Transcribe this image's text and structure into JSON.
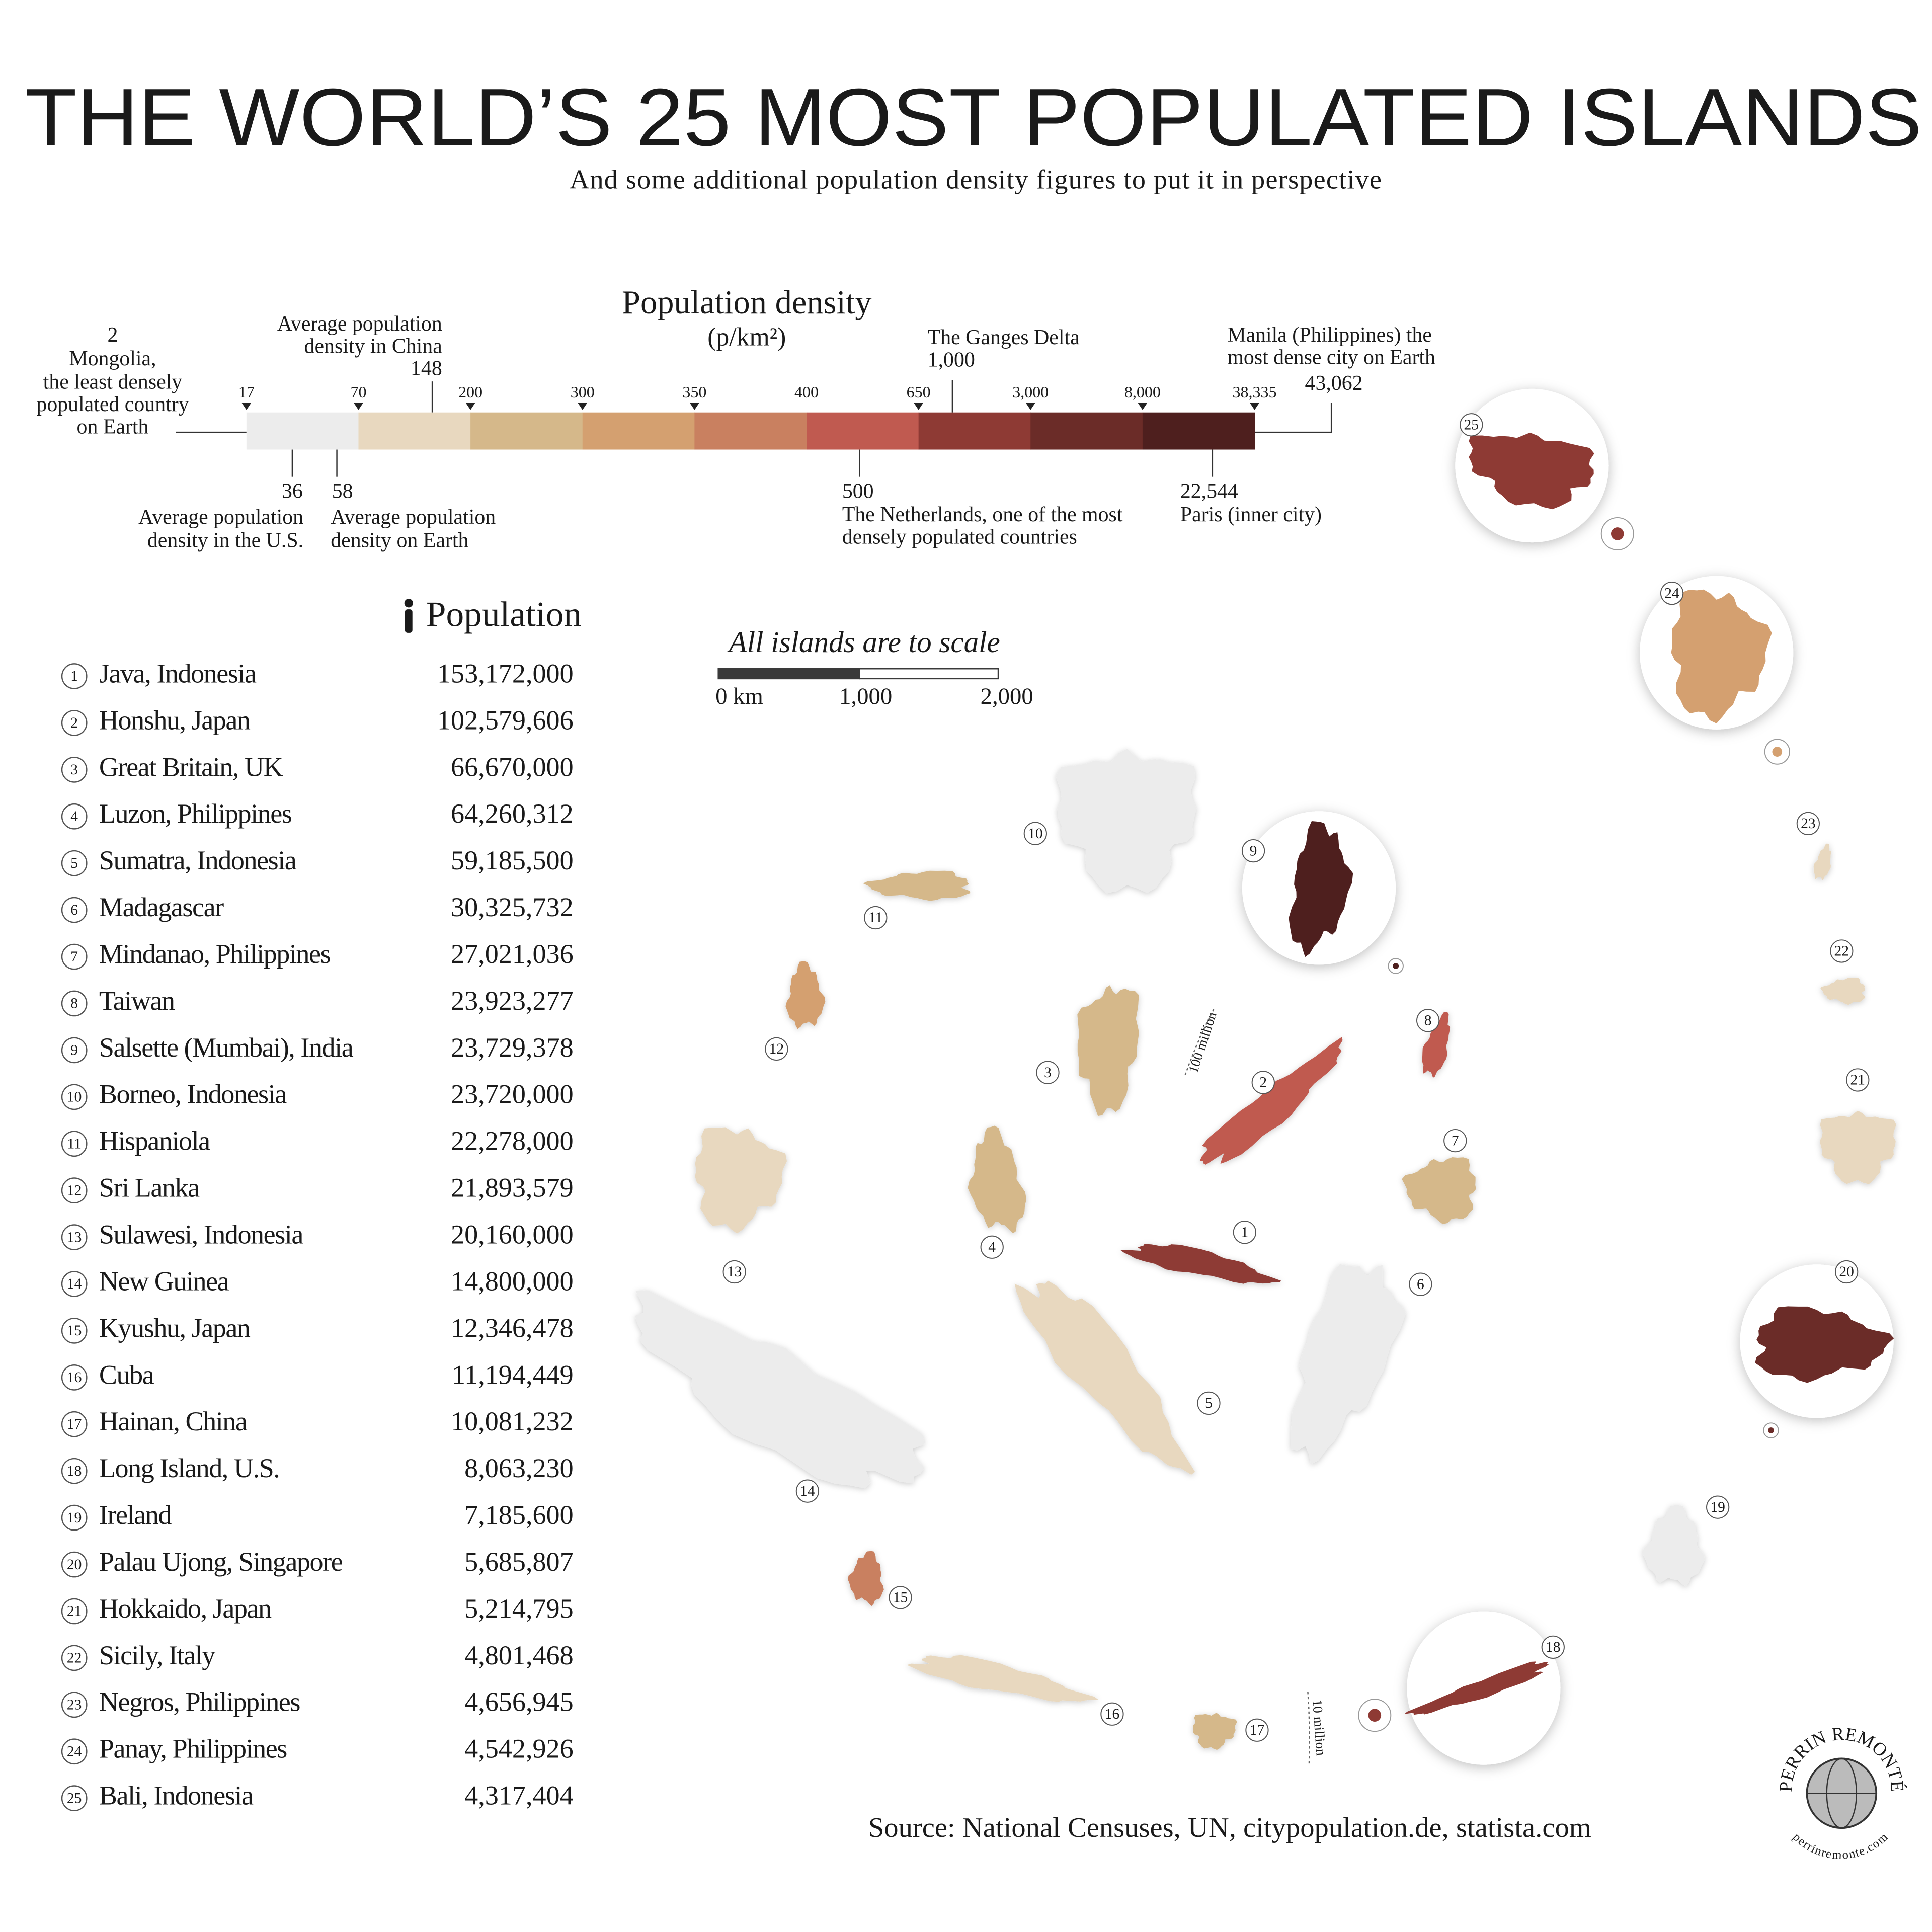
{
  "header": {
    "title": "THE WORLD’S 25 MOST POPULATED ISLANDS",
    "subtitle": "And some additional population density figures to put it in perspective"
  },
  "density_scale": {
    "title": "Population density",
    "unit": "(p/km²)",
    "ticks": [
      "17",
      "70",
      "200",
      "300",
      "350",
      "400",
      "650",
      "3,000",
      "8,000",
      "38,335"
    ]
  },
  "annotations": [
    {
      "lines": [
        "2",
        "Mongolia,",
        "the least densely",
        "populated country",
        "on Earth"
      ]
    },
    {
      "lines": [
        "Average population",
        "density in China",
        "148"
      ]
    },
    {
      "lines": [
        "The Ganges Delta",
        "1,000"
      ]
    },
    {
      "lines": [
        "Manila (Philippines) the",
        "most dense city on Earth",
        "43,062"
      ]
    },
    {
      "lines": [
        "36",
        "Average population",
        "density in the U.S."
      ]
    },
    {
      "lines": [
        "58",
        "Average population",
        "density on Earth"
      ]
    },
    {
      "lines": [
        "500",
        "The Netherlands, one of the most",
        "densely populated countries"
      ]
    },
    {
      "lines": [
        "22,544",
        "Paris (inner city)"
      ]
    }
  ],
  "population_header": "Population",
  "islands": [
    {
      "rank": "1",
      "name": "Java, Indonesia",
      "population": "153,172,000"
    },
    {
      "rank": "2",
      "name": "Honshu, Japan",
      "population": "102,579,606"
    },
    {
      "rank": "3",
      "name": "Great Britain, UK",
      "population": "66,670,000"
    },
    {
      "rank": "4",
      "name": "Luzon, Philippines",
      "population": "64,260,312"
    },
    {
      "rank": "5",
      "name": "Sumatra, Indonesia",
      "population": "59,185,500"
    },
    {
      "rank": "6",
      "name": "Madagascar",
      "population": "30,325,732"
    },
    {
      "rank": "7",
      "name": "Mindanao, Philippines",
      "population": "27,021,036"
    },
    {
      "rank": "8",
      "name": "Taiwan",
      "population": "23,923,277"
    },
    {
      "rank": "9",
      "name": "Salsette (Mumbai), India",
      "population": "23,729,378"
    },
    {
      "rank": "10",
      "name": "Borneo, Indonesia",
      "population": "23,720,000"
    },
    {
      "rank": "11",
      "name": "Hispaniola",
      "population": "22,278,000"
    },
    {
      "rank": "12",
      "name": "Sri Lanka",
      "population": "21,893,579"
    },
    {
      "rank": "13",
      "name": "Sulawesi, Indonesia",
      "population": "20,160,000"
    },
    {
      "rank": "14",
      "name": "New Guinea",
      "population": "14,800,000"
    },
    {
      "rank": "15",
      "name": "Kyushu, Japan",
      "population": "12,346,478"
    },
    {
      "rank": "16",
      "name": "Cuba",
      "population": "11,194,449"
    },
    {
      "rank": "17",
      "name": "Hainan, China",
      "population": "10,081,232"
    },
    {
      "rank": "18",
      "name": "Long Island, U.S.",
      "population": "8,063,230"
    },
    {
      "rank": "19",
      "name": "Ireland",
      "population": "7,185,600"
    },
    {
      "rank": "20",
      "name": "Palau Ujong, Singapore",
      "population": "5,685,807"
    },
    {
      "rank": "21",
      "name": "Hokkaido, Japan",
      "population": "5,214,795"
    },
    {
      "rank": "22",
      "name": "Sicily, Italy",
      "population": "4,801,468"
    },
    {
      "rank": "23",
      "name": "Negros, Philippines",
      "population": "4,656,945"
    },
    {
      "rank": "24",
      "name": "Panay, Philippines",
      "population": "4,542,926"
    },
    {
      "rank": "25",
      "name": "Bali, Indonesia",
      "population": "4,317,404"
    }
  ],
  "scale_bar": {
    "title": "All islands are to scale",
    "labels": [
      "0 km",
      "1,000",
      "2,000"
    ]
  },
  "circle_notes": [
    "100 million",
    "10 million"
  ],
  "source": "Source: National Censuses, UN, citypopulation.de, statista.com",
  "logo": {
    "name": "PERRIN REMONTÉ",
    "url": "perrinremonte.com"
  }
}
